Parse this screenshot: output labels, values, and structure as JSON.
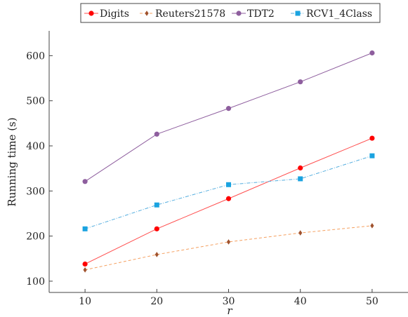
{
  "chart_data": {
    "type": "line",
    "x": [
      10,
      20,
      30,
      40,
      50
    ],
    "xlabel": "r",
    "ylabel": "Running time (s)",
    "xlim": [
      5,
      55
    ],
    "ylim": [
      75,
      655
    ],
    "xticks": [
      10,
      20,
      30,
      40,
      50
    ],
    "yticks": [
      100,
      200,
      300,
      400,
      500,
      600
    ],
    "grid": false,
    "legend_position": "top",
    "series": [
      {
        "name": "Digits",
        "values": [
          138,
          216,
          283,
          351,
          417
        ],
        "color": "#ff4d4d",
        "marker": "circle",
        "dash": "solid",
        "marker_color": "#ff0000"
      },
      {
        "name": "Reuters21578",
        "values": [
          125,
          159,
          187,
          207,
          223
        ],
        "color": "#f5a060",
        "marker": "diamond",
        "dash": "dashed",
        "marker_color": "#a0522d"
      },
      {
        "name": "TDT2",
        "values": [
          321,
          426,
          483,
          542,
          606
        ],
        "color": "#8e5e9e",
        "marker": "circle",
        "dash": "solid",
        "marker_color": "#8e5e9e"
      },
      {
        "name": "RCV1_4Class",
        "values": [
          216,
          269,
          314,
          327,
          378
        ],
        "color": "#55aedf",
        "marker": "square",
        "dash": "dashdot",
        "marker_color": "#1aa3e0"
      }
    ]
  }
}
